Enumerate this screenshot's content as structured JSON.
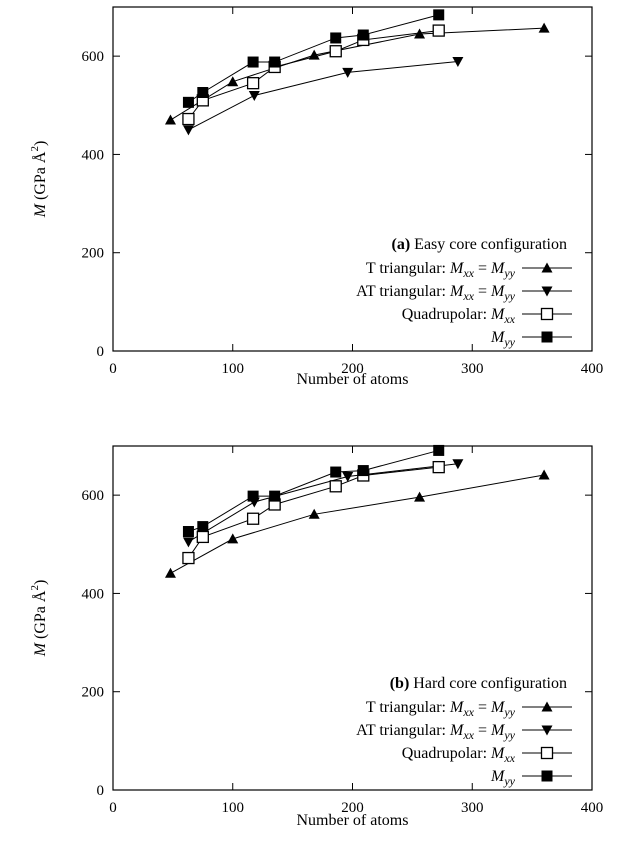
{
  "chart_data": [
    {
      "type": "line",
      "panel_label": "(a)",
      "title": "Easy core configuration",
      "xlabel": "Number of atoms",
      "ylabel": "M (GPa Å²)",
      "ylabel_main": "M",
      "ylabel_unit": "(GPa Å",
      "ylabel_sup": "2",
      "ylabel_close": ")",
      "xlim": [
        0,
        400
      ],
      "ylim": [
        0,
        700
      ],
      "xticks": [
        0,
        100,
        200,
        300,
        400
      ],
      "yticks": [
        0,
        200,
        400,
        600
      ],
      "grid": false,
      "legend_position": "bottom-right",
      "series": [
        {
          "name": "T triangular: Mxx = Myy",
          "legend_prefix": "T triangular: ",
          "marker": "triangle-up",
          "x": [
            48,
            100,
            168,
            256,
            360
          ],
          "y": [
            470,
            548,
            602,
            645,
            657
          ]
        },
        {
          "name": "AT triangular: Mxx = Myy",
          "legend_prefix": "AT triangular: ",
          "marker": "triangle-down",
          "x": [
            63,
            118,
            196,
            288
          ],
          "y": [
            450,
            520,
            567,
            589
          ]
        },
        {
          "name": "Quadrupolar: Mxx",
          "legend_prefix": "Quadrupolar: ",
          "marker": "open-square",
          "x": [
            63,
            75,
            117,
            135,
            186,
            209,
            272
          ],
          "y": [
            472,
            510,
            545,
            578,
            610,
            633,
            652
          ]
        },
        {
          "name": "Myy",
          "legend_prefix": "",
          "marker": "filled-square",
          "x": [
            63,
            75,
            117,
            135,
            186,
            209,
            272
          ],
          "y": [
            506,
            526,
            588,
            588,
            637,
            643,
            684
          ]
        }
      ]
    },
    {
      "type": "line",
      "panel_label": "(b)",
      "title": "Hard core configuration",
      "xlabel": "Number of atoms",
      "ylabel": "M (GPa Å²)",
      "ylabel_main": "M",
      "ylabel_unit": "(GPa Å",
      "ylabel_sup": "2",
      "ylabel_close": ")",
      "xlim": [
        0,
        400
      ],
      "ylim": [
        0,
        700
      ],
      "xticks": [
        0,
        100,
        200,
        300,
        400
      ],
      "yticks": [
        0,
        200,
        400,
        600
      ],
      "grid": false,
      "legend_position": "bottom-right",
      "series": [
        {
          "name": "T triangular: Mxx = Myy",
          "legend_prefix": "T triangular: ",
          "marker": "triangle-up",
          "x": [
            48,
            100,
            168,
            256,
            360
          ],
          "y": [
            441,
            511,
            561,
            596,
            641
          ]
        },
        {
          "name": "AT triangular: Mxx = Myy",
          "legend_prefix": "AT triangular: ",
          "marker": "triangle-down",
          "x": [
            63,
            118,
            196,
            288
          ],
          "y": [
            505,
            586,
            638,
            664
          ]
        },
        {
          "name": "Quadrupolar: Mxx",
          "legend_prefix": "Quadrupolar: ",
          "marker": "open-square",
          "x": [
            63,
            75,
            117,
            135,
            186,
            209,
            272
          ],
          "y": [
            472,
            515,
            552,
            581,
            618,
            640,
            657
          ]
        },
        {
          "name": "Myy",
          "legend_prefix": "",
          "marker": "filled-square",
          "x": [
            63,
            75,
            117,
            135,
            186,
            209,
            272
          ],
          "y": [
            526,
            536,
            598,
            598,
            647,
            650,
            691
          ]
        }
      ]
    }
  ]
}
